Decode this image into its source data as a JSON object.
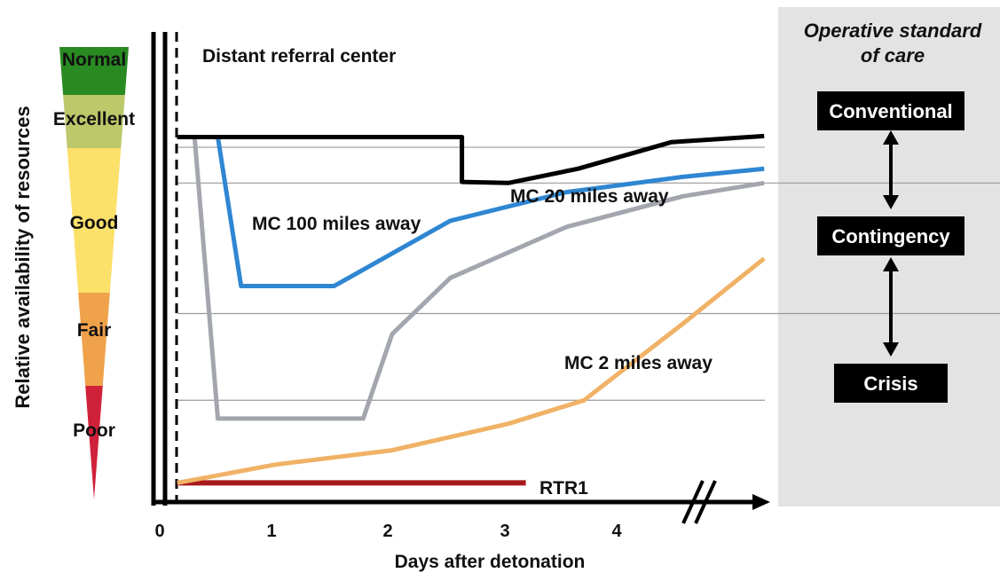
{
  "chart_data": {
    "type": "line",
    "title": "",
    "xlabel": "Days after detonation",
    "ylabel": "Relative availability of resources",
    "x_ticks": [
      0,
      1,
      2,
      3,
      4
    ],
    "xlim": [
      0,
      5.2
    ],
    "ylim": [
      0,
      4
    ],
    "y_levels": [
      {
        "label": "Poor",
        "color": "#d0213a"
      },
      {
        "label": "Fair",
        "color": "#f0a24a"
      },
      {
        "label": "Good",
        "color": "#fbe06a"
      },
      {
        "label": "Excellent",
        "color": "#bcc86a"
      },
      {
        "label": "Normal",
        "color": "#2a8a22"
      }
    ],
    "series": [
      {
        "name": "Distant referral center",
        "color": "#000000",
        "x": [
          0.15,
          2.6,
          2.6,
          3.0,
          3.6,
          4.4,
          5.2
        ],
        "y": [
          3.43,
          3.43,
          2.99,
          2.98,
          3.12,
          3.38,
          3.44
        ]
      },
      {
        "name": "MC 100 miles away",
        "color": "#2f86d2",
        "x": [
          0.15,
          0.5,
          0.7,
          1.5,
          2.5,
          3.5,
          4.5,
          5.2
        ],
        "y": [
          3.43,
          3.43,
          1.97,
          1.97,
          2.61,
          2.89,
          3.04,
          3.12
        ]
      },
      {
        "name": "MC 20 miles away",
        "color": "#a3a6ae",
        "x": [
          0.15,
          0.3,
          0.5,
          1.75,
          2.0,
          2.5,
          3.5,
          4.5,
          5.2
        ],
        "y": [
          3.43,
          3.43,
          0.67,
          0.67,
          1.5,
          2.05,
          2.55,
          2.85,
          2.98
        ]
      },
      {
        "name": "MC 2 miles away",
        "color": "#f0b266",
        "x": [
          0.15,
          1.0,
          2.0,
          3.0,
          3.65,
          4.5,
          5.2
        ],
        "y": [
          0.04,
          0.22,
          0.36,
          0.62,
          0.85,
          1.6,
          2.24
        ]
      },
      {
        "name": "RTR1",
        "color": "#a8191c",
        "x": [
          0.15,
          3.15
        ],
        "y": [
          0.04,
          0.04
        ]
      }
    ],
    "reference_lines_y": [
      3.33,
      2.98,
      1.7,
      0.85
    ],
    "annotations": {
      "standards_title": "Operative standard of care",
      "standards": [
        "Conventional",
        "Contingency",
        "Crisis"
      ]
    }
  }
}
